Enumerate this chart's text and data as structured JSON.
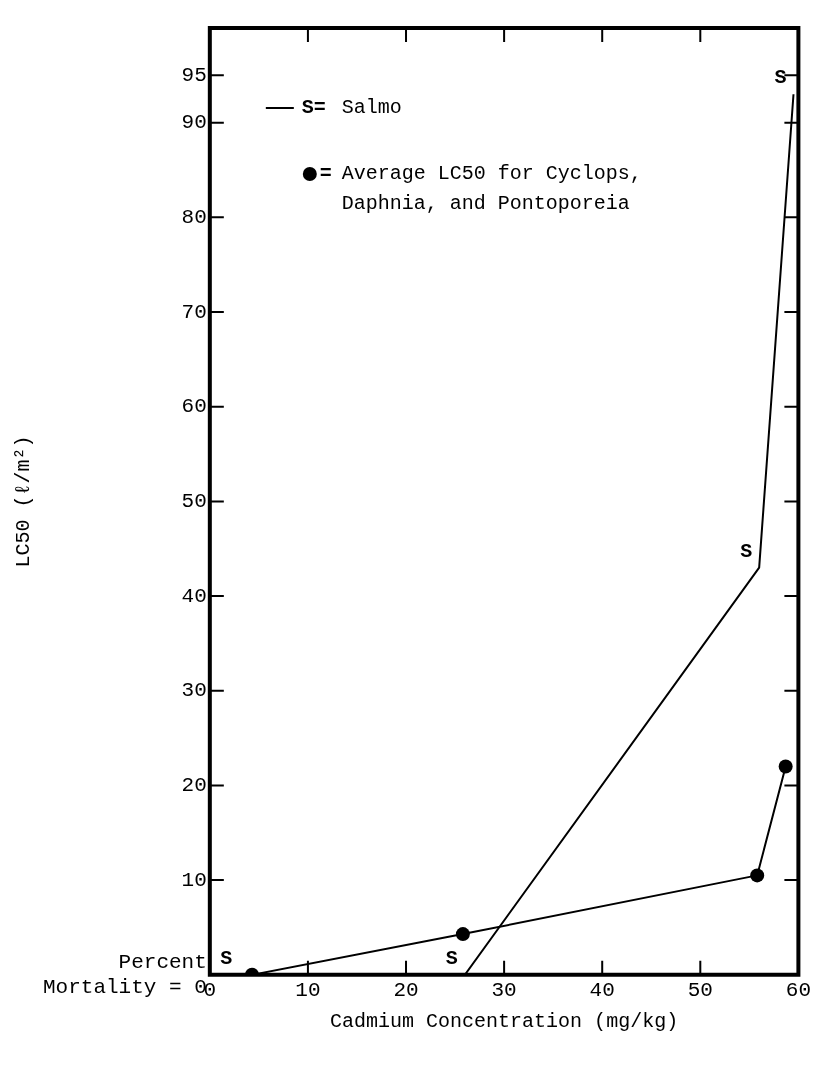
{
  "chart_data": {
    "type": "line",
    "xlabel": "Cadmium Concentration (mg/kg)",
    "ylabel": "LC50 (ℓ/m²)",
    "annotations": [
      {
        "text": "S",
        "x": 3,
        "y": 0
      },
      {
        "text": "S",
        "x": 26,
        "y": 0
      },
      {
        "text": "S",
        "x": 56,
        "y": 43
      },
      {
        "text": "S",
        "x": 59.5,
        "y": 93
      },
      "S=",
      "="
    ],
    "xlim": [
      0,
      60
    ],
    "xticks": [
      0,
      10,
      20,
      30,
      40,
      50,
      60
    ],
    "ylim": [
      0,
      100
    ],
    "yticks": [
      {
        "value": 0,
        "label": "Percent Mortality = 0"
      },
      10,
      20,
      30,
      40,
      50,
      60,
      70,
      80,
      90,
      95
    ],
    "grid": false,
    "legend": "top left",
    "series": [
      {
        "name": "Salmo",
        "color": "#000000",
        "marker": "none",
        "x": [
          3,
          26,
          56,
          59.5
        ],
        "values": [
          0,
          0,
          43,
          93
        ]
      },
      {
        "name": "Average LC50 for Cyclops, Daphnia, and Pontoporeia",
        "color": "#000000",
        "marker": "circle",
        "x": [
          4.3,
          25.8,
          55.8,
          58.7
        ],
        "values": [
          0,
          4.3,
          10.5,
          22
        ]
      }
    ]
  }
}
